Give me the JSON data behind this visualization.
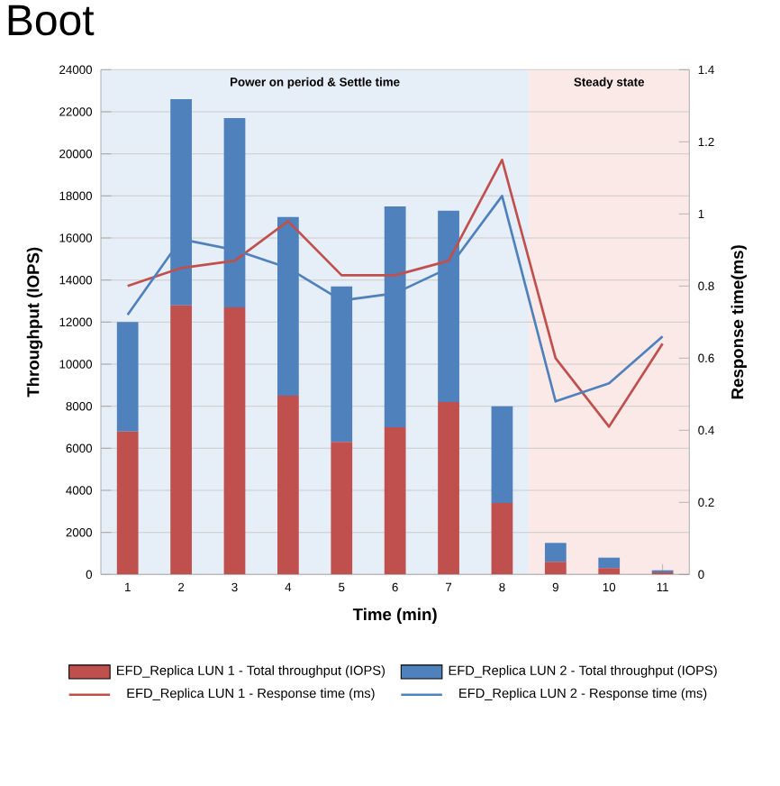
{
  "chart_data": {
    "type": "bar",
    "title": "Boot",
    "xlabel": "Time (min)",
    "ylabel": "Throughput (IOPS)",
    "y2label": "Response time(ms)",
    "x": [
      1,
      2,
      3,
      4,
      5,
      6,
      7,
      8,
      9,
      10,
      11
    ],
    "xlim": [
      0.5,
      11.5
    ],
    "xticks": [
      1,
      2,
      3,
      4,
      5,
      6,
      7,
      8,
      9,
      10,
      11
    ],
    "ylim": [
      0,
      24000
    ],
    "yticks": [
      0,
      2000,
      4000,
      6000,
      8000,
      10000,
      12000,
      14000,
      16000,
      18000,
      20000,
      22000,
      24000
    ],
    "y2lim": [
      0,
      1.4
    ],
    "y2ticks": [
      0,
      0.2,
      0.4,
      0.6,
      0.8,
      1,
      1.2,
      1.4
    ],
    "stacked": true,
    "grid": "y",
    "legend": "bottom",
    "marker": "none",
    "line_style": "solid",
    "bands": [
      {
        "axis": "x",
        "from": 0.5,
        "to": 8.5,
        "label": "Power on period & Settle time",
        "color": "#e6eef8"
      },
      {
        "axis": "x",
        "from": 8.5,
        "to": 11.5,
        "label": "Steady state",
        "color": "#fbe9e8"
      }
    ],
    "series": [
      {
        "name": "EFD_Replica LUN 1 - Total throughput (IOPS)",
        "color": "#c0504d",
        "values": [
          6800,
          12800,
          12700,
          8500,
          6300,
          7000,
          8200,
          3400,
          600,
          300,
          100
        ]
      },
      {
        "name": "EFD_Replica LUN 2 - Total throughput (IOPS)",
        "color": "#4f81bd",
        "values": [
          5200,
          9800,
          9000,
          8500,
          7400,
          10500,
          9100,
          4600,
          900,
          500,
          100
        ]
      },
      {
        "name": "EFD_Replica LUN 1 - Response time (ms)",
        "type": "line",
        "axis": "y2",
        "color": "#c0504d",
        "values": [
          0.8,
          0.85,
          0.87,
          0.98,
          0.83,
          0.83,
          0.87,
          1.15,
          0.6,
          0.41,
          0.64
        ]
      },
      {
        "name": "EFD_Replica LUN 2 - Response time (ms)",
        "type": "line",
        "axis": "y2",
        "color": "#4f81bd",
        "values": [
          0.72,
          0.93,
          0.9,
          0.85,
          0.76,
          0.78,
          0.85,
          1.05,
          0.48,
          0.53,
          0.66
        ]
      }
    ]
  }
}
